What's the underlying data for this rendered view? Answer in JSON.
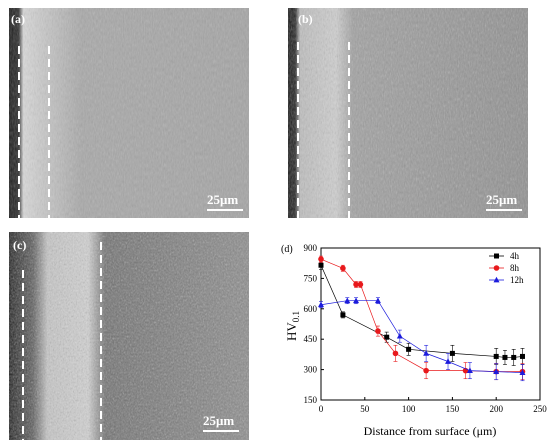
{
  "panels": [
    {
      "label": "(a)",
      "scale": "25μm"
    },
    {
      "label": "(b)",
      "scale": "25μm"
    },
    {
      "label": "(c)",
      "scale": "25μm"
    }
  ],
  "chart_data": {
    "type": "line",
    "panel_label": "(d)",
    "xlabel": "Distance from surface (μm)",
    "ylabel_main": "HV",
    "ylabel_sub": "0.1",
    "xlim": [
      0,
      250
    ],
    "ylim": [
      150,
      900
    ],
    "xticks": [
      0,
      50,
      100,
      150,
      200,
      250
    ],
    "yticks": [
      150,
      300,
      450,
      600,
      750,
      900
    ],
    "legend_position": "top-right",
    "series": [
      {
        "name": "4h",
        "color": "#000000",
        "marker": "square",
        "x": [
          0,
          25,
          75,
          100,
          150,
          200,
          210,
          220,
          230
        ],
        "y": [
          815,
          570,
          460,
          400,
          380,
          365,
          360,
          360,
          365
        ],
        "err": [
          20,
          15,
          25,
          30,
          40,
          40,
          35,
          40,
          40
        ]
      },
      {
        "name": "8h",
        "color": "#e8191c",
        "marker": "circle",
        "x": [
          0,
          25,
          40,
          45,
          65,
          85,
          120,
          165,
          200,
          230
        ],
        "y": [
          845,
          800,
          720,
          720,
          490,
          380,
          295,
          295,
          290,
          290
        ],
        "err": [
          15,
          15,
          15,
          15,
          25,
          40,
          40,
          40,
          40,
          40
        ]
      },
      {
        "name": "12h",
        "color": "#1c1cdc",
        "marker": "triangle",
        "x": [
          0,
          30,
          40,
          65,
          90,
          120,
          145,
          170,
          200,
          230
        ],
        "y": [
          620,
          640,
          640,
          640,
          465,
          380,
          340,
          295,
          290,
          285
        ],
        "err": [
          15,
          15,
          15,
          15,
          30,
          40,
          40,
          40,
          40,
          40
        ]
      }
    ]
  }
}
